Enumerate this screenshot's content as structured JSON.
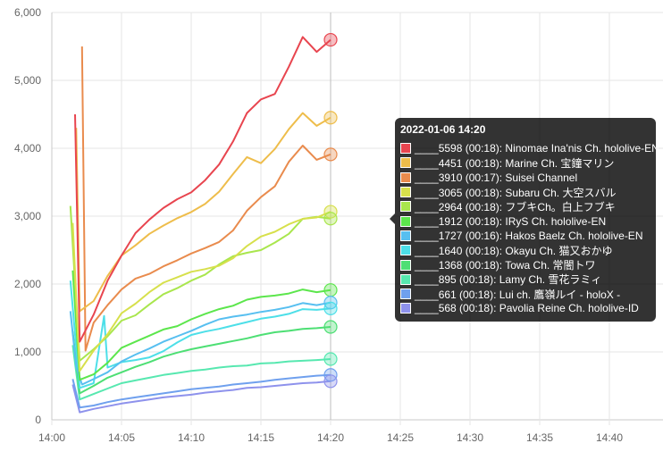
{
  "chart_data": {
    "type": "line",
    "x_unit": "time",
    "ylim": [
      0,
      6000
    ],
    "xlim": [
      "14:00",
      "14:45"
    ],
    "x_ticks": [
      "14:00",
      "14:05",
      "14:10",
      "14:15",
      "14:20",
      "14:25",
      "14:30",
      "14:35",
      "14:40"
    ],
    "y_ticks": [
      "0",
      "1,000",
      "2,000",
      "3,000",
      "4,000",
      "5,000",
      "6,000"
    ],
    "hover_x": "14:20",
    "grid": true,
    "series": [
      {
        "color": "#e8454f",
        "points": [
          [
            "14:01:40",
            4500
          ],
          [
            "14:02",
            1150
          ],
          [
            "14:03",
            1550
          ],
          [
            "14:04",
            2050
          ],
          [
            "14:05",
            2420
          ],
          [
            "14:06",
            2750
          ],
          [
            "14:07",
            2950
          ],
          [
            "14:08",
            3120
          ],
          [
            "14:09",
            3250
          ],
          [
            "14:10",
            3350
          ],
          [
            "14:11",
            3530
          ],
          [
            "14:12",
            3760
          ],
          [
            "14:13",
            4100
          ],
          [
            "14:14",
            4520
          ],
          [
            "14:15",
            4720
          ],
          [
            "14:16",
            4800
          ],
          [
            "14:17",
            5200
          ],
          [
            "14:18",
            5640
          ],
          [
            "14:19",
            5420
          ],
          [
            "14:20",
            5598
          ]
        ]
      },
      {
        "color": "#eebd4b",
        "points": [
          [
            "14:01:45",
            4300
          ],
          [
            "14:02",
            1600
          ],
          [
            "14:03",
            1750
          ],
          [
            "14:04",
            2120
          ],
          [
            "14:05",
            2420
          ],
          [
            "14:06",
            2570
          ],
          [
            "14:07",
            2740
          ],
          [
            "14:08",
            2860
          ],
          [
            "14:09",
            2970
          ],
          [
            "14:10",
            3060
          ],
          [
            "14:11",
            3180
          ],
          [
            "14:12",
            3360
          ],
          [
            "14:13",
            3620
          ],
          [
            "14:14",
            3870
          ],
          [
            "14:15",
            3780
          ],
          [
            "14:16",
            3990
          ],
          [
            "14:17",
            4280
          ],
          [
            "14:18",
            4520
          ],
          [
            "14:19",
            4330
          ],
          [
            "14:20",
            4451
          ]
        ]
      },
      {
        "color": "#e98b4d",
        "points": [
          [
            "14:02:10",
            5500
          ],
          [
            "14:02:25",
            1020
          ],
          [
            "14:03",
            1430
          ],
          [
            "14:04",
            1690
          ],
          [
            "14:05",
            1920
          ],
          [
            "14:06",
            2080
          ],
          [
            "14:07",
            2150
          ],
          [
            "14:08",
            2260
          ],
          [
            "14:09",
            2350
          ],
          [
            "14:10",
            2450
          ],
          [
            "14:11",
            2530
          ],
          [
            "14:12",
            2620
          ],
          [
            "14:13",
            2790
          ],
          [
            "14:14",
            3080
          ],
          [
            "14:15",
            3280
          ],
          [
            "14:16",
            3440
          ],
          [
            "14:17",
            3800
          ],
          [
            "14:18",
            4040
          ],
          [
            "14:19",
            3830
          ],
          [
            "14:20",
            3910
          ]
        ]
      },
      {
        "color": "#d7e04c",
        "points": [
          [
            "14:01:30",
            2900
          ],
          [
            "14:02",
            720
          ],
          [
            "14:03",
            1020
          ],
          [
            "14:04",
            1260
          ],
          [
            "14:05",
            1570
          ],
          [
            "14:06",
            1710
          ],
          [
            "14:07",
            1880
          ],
          [
            "14:08",
            2020
          ],
          [
            "14:09",
            2100
          ],
          [
            "14:10",
            2180
          ],
          [
            "14:11",
            2220
          ],
          [
            "14:12",
            2270
          ],
          [
            "14:13",
            2380
          ],
          [
            "14:14",
            2560
          ],
          [
            "14:15",
            2700
          ],
          [
            "14:16",
            2770
          ],
          [
            "14:17",
            2880
          ],
          [
            "14:18",
            2960
          ],
          [
            "14:19",
            2980
          ],
          [
            "14:20",
            3065
          ]
        ]
      },
      {
        "color": "#a9e64d",
        "points": [
          [
            "14:01:20",
            3150
          ],
          [
            "14:02",
            870
          ],
          [
            "14:03",
            1040
          ],
          [
            "14:04",
            1230
          ],
          [
            "14:05",
            1460
          ],
          [
            "14:06",
            1540
          ],
          [
            "14:07",
            1700
          ],
          [
            "14:08",
            1850
          ],
          [
            "14:09",
            1940
          ],
          [
            "14:10",
            2050
          ],
          [
            "14:11",
            2140
          ],
          [
            "14:12",
            2290
          ],
          [
            "14:13",
            2410
          ],
          [
            "14:14",
            2460
          ],
          [
            "14:15",
            2500
          ],
          [
            "14:16",
            2610
          ],
          [
            "14:17",
            2740
          ],
          [
            "14:18",
            2960
          ],
          [
            "14:19",
            2990
          ],
          [
            "14:20",
            2964
          ]
        ]
      },
      {
        "color": "#5ce64c",
        "points": [
          [
            "14:01:30",
            2200
          ],
          [
            "14:02",
            590
          ],
          [
            "14:03",
            670
          ],
          [
            "14:04",
            840
          ],
          [
            "14:05",
            1060
          ],
          [
            "14:06",
            1150
          ],
          [
            "14:07",
            1240
          ],
          [
            "14:08",
            1330
          ],
          [
            "14:09",
            1380
          ],
          [
            "14:10",
            1480
          ],
          [
            "14:11",
            1560
          ],
          [
            "14:12",
            1630
          ],
          [
            "14:13",
            1680
          ],
          [
            "14:14",
            1770
          ],
          [
            "14:15",
            1810
          ],
          [
            "14:16",
            1830
          ],
          [
            "14:17",
            1860
          ],
          [
            "14:18",
            1920
          ],
          [
            "14:19",
            1880
          ],
          [
            "14:20",
            1912
          ]
        ]
      },
      {
        "color": "#57bff0",
        "points": [
          [
            "14:01:20",
            1600
          ],
          [
            "14:01:45",
            780
          ],
          [
            "14:02:10",
            520
          ],
          [
            "14:03",
            600
          ],
          [
            "14:04",
            700
          ],
          [
            "14:05",
            860
          ],
          [
            "14:06",
            960
          ],
          [
            "14:07",
            1050
          ],
          [
            "14:08",
            1150
          ],
          [
            "14:09",
            1230
          ],
          [
            "14:10",
            1310
          ],
          [
            "14:11",
            1400
          ],
          [
            "14:12",
            1480
          ],
          [
            "14:13",
            1520
          ],
          [
            "14:14",
            1550
          ],
          [
            "14:15",
            1590
          ],
          [
            "14:16",
            1620
          ],
          [
            "14:17",
            1660
          ],
          [
            "14:18",
            1720
          ],
          [
            "14:19",
            1690
          ],
          [
            "14:20",
            1727
          ]
        ]
      },
      {
        "color": "#4ddfe8",
        "points": [
          [
            "14:01:20",
            2050
          ],
          [
            "14:02",
            470
          ],
          [
            "14:03",
            540
          ],
          [
            "14:03:45",
            1530
          ],
          [
            "14:04",
            770
          ],
          [
            "14:05",
            850
          ],
          [
            "14:06",
            880
          ],
          [
            "14:07",
            920
          ],
          [
            "14:08",
            1010
          ],
          [
            "14:09",
            1140
          ],
          [
            "14:10",
            1250
          ],
          [
            "14:11",
            1300
          ],
          [
            "14:12",
            1340
          ],
          [
            "14:13",
            1390
          ],
          [
            "14:14",
            1440
          ],
          [
            "14:15",
            1490
          ],
          [
            "14:16",
            1520
          ],
          [
            "14:17",
            1560
          ],
          [
            "14:18",
            1630
          ],
          [
            "14:19",
            1620
          ],
          [
            "14:20",
            1640
          ]
        ]
      },
      {
        "color": "#4ddf74",
        "points": [
          [
            "14:01:30",
            1300
          ],
          [
            "14:02",
            390
          ],
          [
            "14:03",
            500
          ],
          [
            "14:04",
            620
          ],
          [
            "14:05",
            700
          ],
          [
            "14:06",
            780
          ],
          [
            "14:07",
            850
          ],
          [
            "14:08",
            930
          ],
          [
            "14:09",
            990
          ],
          [
            "14:10",
            1040
          ],
          [
            "14:11",
            1080
          ],
          [
            "14:12",
            1120
          ],
          [
            "14:13",
            1160
          ],
          [
            "14:14",
            1200
          ],
          [
            "14:15",
            1250
          ],
          [
            "14:16",
            1290
          ],
          [
            "14:17",
            1310
          ],
          [
            "14:18",
            1340
          ],
          [
            "14:19",
            1350
          ],
          [
            "14:20",
            1368
          ]
        ]
      },
      {
        "color": "#57e8b0",
        "points": [
          [
            "14:01:30",
            1100
          ],
          [
            "14:02",
            300
          ],
          [
            "14:03",
            380
          ],
          [
            "14:04",
            460
          ],
          [
            "14:05",
            540
          ],
          [
            "14:06",
            580
          ],
          [
            "14:07",
            620
          ],
          [
            "14:08",
            660
          ],
          [
            "14:09",
            690
          ],
          [
            "14:10",
            720
          ],
          [
            "14:11",
            740
          ],
          [
            "14:12",
            770
          ],
          [
            "14:13",
            790
          ],
          [
            "14:14",
            800
          ],
          [
            "14:15",
            830
          ],
          [
            "14:16",
            840
          ],
          [
            "14:17",
            860
          ],
          [
            "14:18",
            870
          ],
          [
            "14:19",
            880
          ],
          [
            "14:20",
            895
          ]
        ]
      },
      {
        "color": "#6fa0ee",
        "points": [
          [
            "14:01:30",
            600
          ],
          [
            "14:02",
            180
          ],
          [
            "14:03",
            210
          ],
          [
            "14:04",
            260
          ],
          [
            "14:05",
            300
          ],
          [
            "14:06",
            330
          ],
          [
            "14:07",
            360
          ],
          [
            "14:08",
            390
          ],
          [
            "14:09",
            420
          ],
          [
            "14:10",
            450
          ],
          [
            "14:11",
            470
          ],
          [
            "14:12",
            490
          ],
          [
            "14:13",
            520
          ],
          [
            "14:14",
            540
          ],
          [
            "14:15",
            560
          ],
          [
            "14:16",
            590
          ],
          [
            "14:17",
            610
          ],
          [
            "14:18",
            630
          ],
          [
            "14:19",
            650
          ],
          [
            "14:20",
            661
          ]
        ]
      },
      {
        "color": "#8e92ec",
        "points": [
          [
            "14:01:30",
            520
          ],
          [
            "14:02",
            110
          ],
          [
            "14:03",
            160
          ],
          [
            "14:04",
            200
          ],
          [
            "14:05",
            240
          ],
          [
            "14:06",
            270
          ],
          [
            "14:07",
            300
          ],
          [
            "14:08",
            330
          ],
          [
            "14:09",
            350
          ],
          [
            "14:10",
            370
          ],
          [
            "14:11",
            400
          ],
          [
            "14:12",
            420
          ],
          [
            "14:13",
            440
          ],
          [
            "14:14",
            470
          ],
          [
            "14:15",
            480
          ],
          [
            "14:16",
            500
          ],
          [
            "14:17",
            520
          ],
          [
            "14:18",
            540
          ],
          [
            "14:19",
            550
          ],
          [
            "14:20",
            568
          ]
        ]
      }
    ]
  },
  "tooltip": {
    "title": "2022-01-06 14:20",
    "items": [
      {
        "text": "____5598 (00:18): Ninomae Ina'nis Ch. hololive-EN",
        "color": "#e8454f"
      },
      {
        "text": "____4451 (00:18): Marine Ch. 宝鐘マリン",
        "color": "#eebd4b"
      },
      {
        "text": "____3910 (00:17): Suisei Channel",
        "color": "#e98b4d"
      },
      {
        "text": "____3065 (00:18): Subaru Ch. 大空スバル",
        "color": "#d7e04c"
      },
      {
        "text": "____2964 (00:18): フブキCh。白上フブキ",
        "color": "#a9e64d"
      },
      {
        "text": "____1912 (00:18): IRyS Ch. hololive-EN",
        "color": "#5ce64c"
      },
      {
        "text": "____1727 (00:16): Hakos Baelz Ch. hololive-EN",
        "color": "#57bff0"
      },
      {
        "text": "____1640 (00:18): Okayu Ch. 猫又おかゆ",
        "color": "#4ddfe8"
      },
      {
        "text": "____1368 (00:18): Towa Ch. 常闇トワ",
        "color": "#4ddf74"
      },
      {
        "text": "____895 (00:18): Lamy Ch. 雪花ラミィ",
        "color": "#57e8b0"
      },
      {
        "text": "____661 (00:18): Lui ch. 鷹嶺ルイ - holoX -",
        "color": "#6fa0ee"
      },
      {
        "text": "____568 (00:18): Pavolia Reine Ch. hololive-ID",
        "color": "#8e92ec"
      }
    ]
  }
}
